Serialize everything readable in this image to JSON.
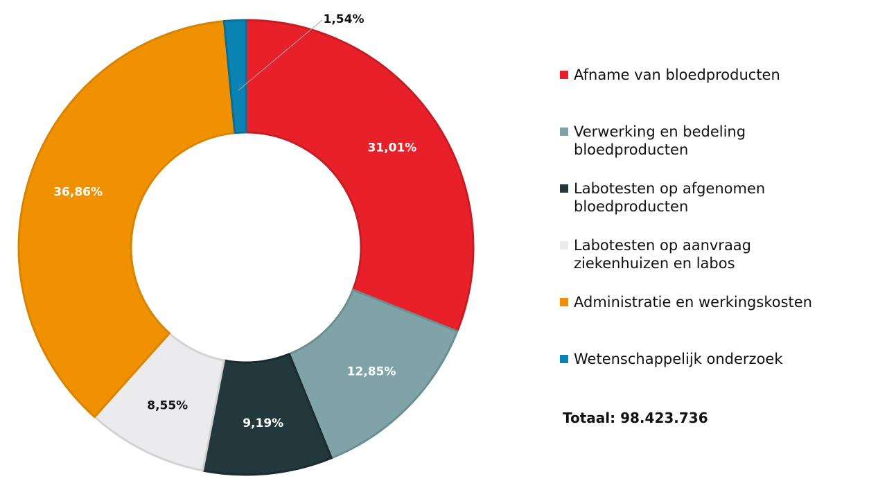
{
  "chart_data": {
    "type": "pie",
    "style": "donut",
    "categories": [
      "Afname van bloedproducten",
      "Verwerking en bedeling bloedproducten",
      "Labotesten op afgenomen bloedproducten",
      "Labotesten op aanvraag ziekenhuizen en labos",
      "Administratie en werkingskosten",
      "Wetenschappelijk onderzoek"
    ],
    "values": [
      31.01,
      12.85,
      9.19,
      8.55,
      36.86,
      1.54
    ],
    "value_labels": [
      "31,01%",
      "12,85%",
      "9,19%",
      "8,55%",
      "36,86%",
      "1,54%"
    ],
    "colors": [
      "#e8202a",
      "#7fa3a6",
      "#22383d",
      "#ebebed",
      "#ef9100",
      "#0b83b3"
    ],
    "label_colors": [
      "#ffffff",
      "#ffffff",
      "#ffffff",
      "#111111",
      "#ffffff",
      "#111111"
    ],
    "legend_position": "right",
    "total_text": "Totaal: 98.423.736"
  }
}
